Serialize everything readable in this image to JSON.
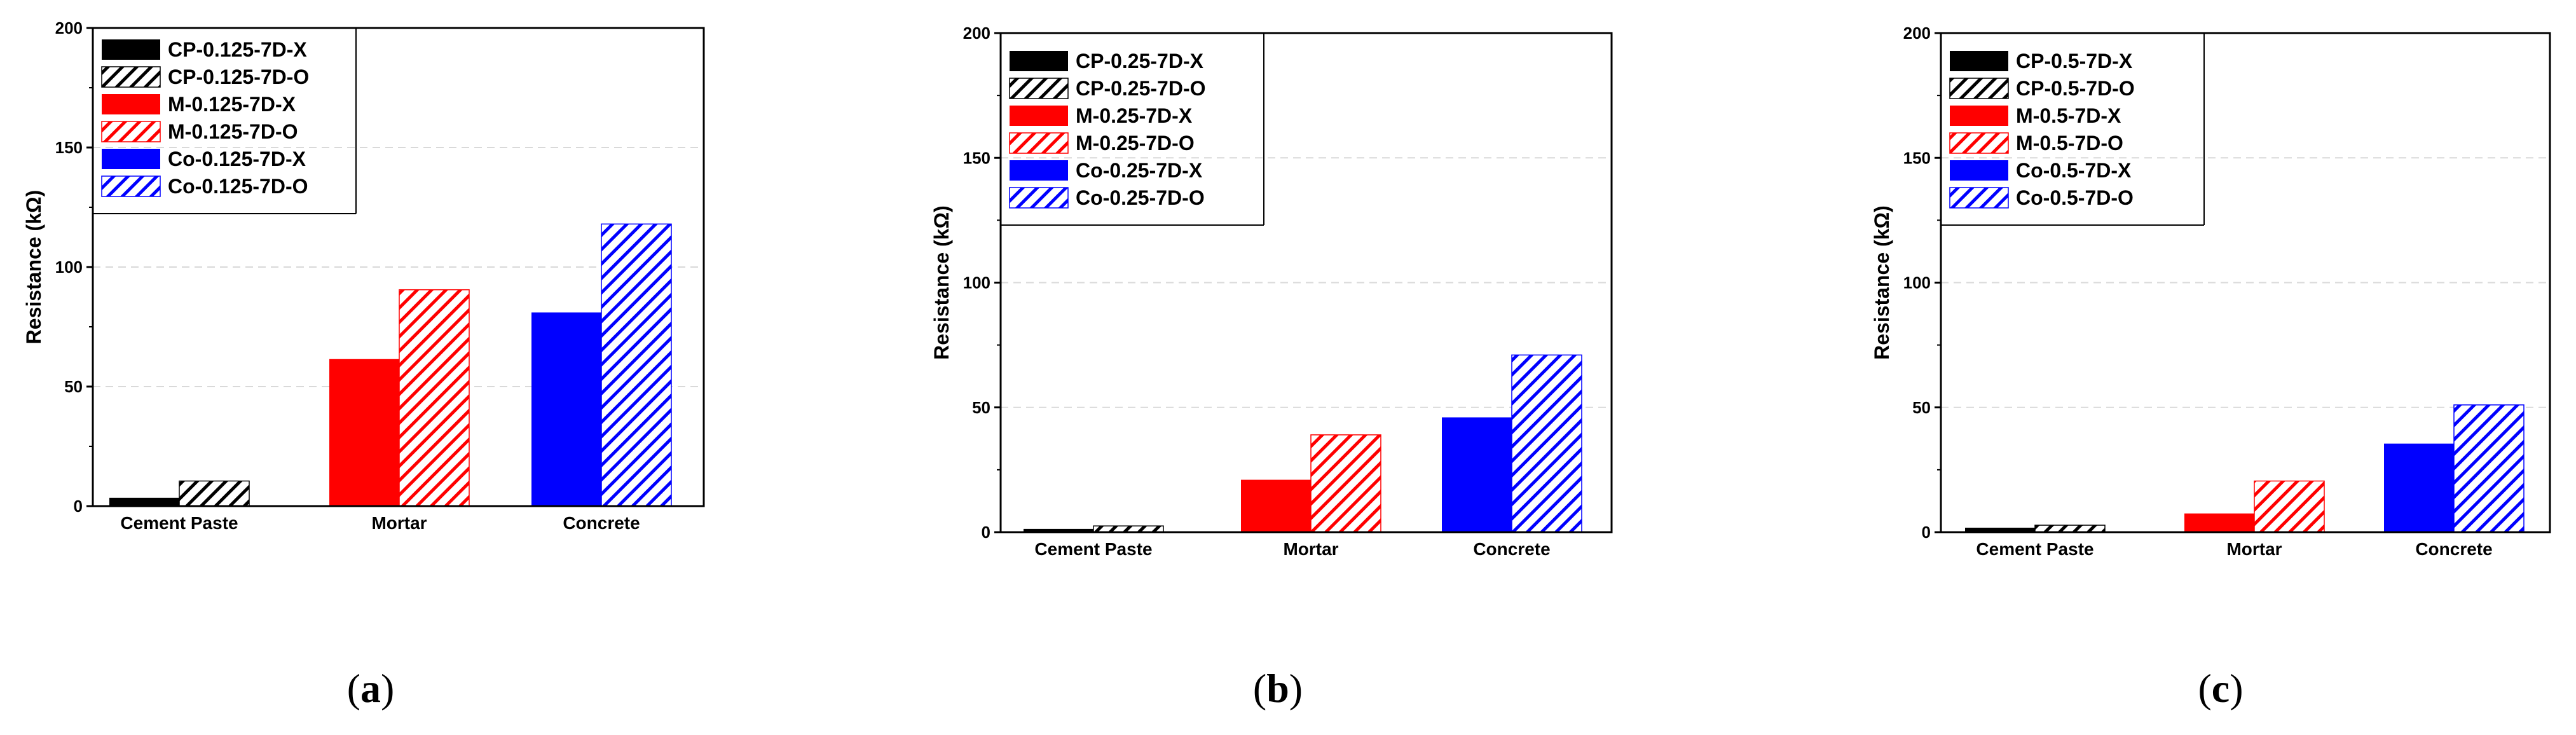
{
  "colors": {
    "black": "#000000",
    "red": "#ff0000",
    "blue": "#0000ff",
    "grid": "#d9d9d9"
  },
  "chart_data": [
    {
      "type": "bar",
      "panel_label": "a",
      "ylabel": "Resistance (kΩ)",
      "ylim": [
        0,
        200
      ],
      "yticks": [
        0,
        50,
        100,
        150,
        200
      ],
      "categories": [
        "Cement Paste",
        "Mortar",
        "Concrete"
      ],
      "grid": "horizontal dashed",
      "legend_position": "top-left",
      "series": [
        {
          "name": "CP-0.125-7D-X",
          "color": "#000000",
          "hatch": false,
          "values": [
            3.5,
            null,
            null
          ]
        },
        {
          "name": "CP-0.125-7D-O",
          "color": "#000000",
          "hatch": true,
          "values": [
            10.5,
            null,
            null
          ]
        },
        {
          "name": "M-0.125-7D-X",
          "color": "#ff0000",
          "hatch": false,
          "values": [
            null,
            61.5,
            null
          ]
        },
        {
          "name": "M-0.125-7D-O",
          "color": "#ff0000",
          "hatch": true,
          "values": [
            null,
            90.5,
            null
          ]
        },
        {
          "name": "Co-0.125-7D-X",
          "color": "#0000ff",
          "hatch": false,
          "values": [
            null,
            null,
            81
          ]
        },
        {
          "name": "Co-0.125-7D-O",
          "color": "#0000ff",
          "hatch": true,
          "values": [
            null,
            null,
            118
          ]
        }
      ]
    },
    {
      "type": "bar",
      "panel_label": "b",
      "ylabel": "Resistance (kΩ)",
      "ylim": [
        0,
        200
      ],
      "yticks": [
        0,
        50,
        100,
        150,
        200
      ],
      "categories": [
        "Cement Paste",
        "Mortar",
        "Concrete"
      ],
      "grid": "horizontal dashed",
      "legend_position": "top-left",
      "series": [
        {
          "name": "CP-0.25-7D-X",
          "color": "#000000",
          "hatch": false,
          "values": [
            1.3,
            null,
            null
          ]
        },
        {
          "name": "CP-0.25-7D-O",
          "color": "#000000",
          "hatch": true,
          "values": [
            2.5,
            null,
            null
          ]
        },
        {
          "name": "M-0.25-7D-X",
          "color": "#ff0000",
          "hatch": false,
          "values": [
            null,
            21,
            null
          ]
        },
        {
          "name": "M-0.25-7D-O",
          "color": "#ff0000",
          "hatch": true,
          "values": [
            null,
            39,
            null
          ]
        },
        {
          "name": "Co-0.25-7D-X",
          "color": "#0000ff",
          "hatch": false,
          "values": [
            null,
            null,
            46
          ]
        },
        {
          "name": "Co-0.25-7D-O",
          "color": "#0000ff",
          "hatch": true,
          "values": [
            null,
            null,
            71
          ]
        }
      ]
    },
    {
      "type": "bar",
      "panel_label": "c",
      "ylabel": "Resistance (kΩ)",
      "ylim": [
        0,
        200
      ],
      "yticks": [
        0,
        50,
        100,
        150,
        200
      ],
      "categories": [
        "Cement Paste",
        "Mortar",
        "Concrete"
      ],
      "grid": "horizontal dashed",
      "legend_position": "top-left",
      "series": [
        {
          "name": "CP-0.5-7D-X",
          "color": "#000000",
          "hatch": false,
          "values": [
            1.8,
            null,
            null
          ]
        },
        {
          "name": "CP-0.5-7D-O",
          "color": "#000000",
          "hatch": true,
          "values": [
            2.8,
            null,
            null
          ]
        },
        {
          "name": "M-0.5-7D-X",
          "color": "#ff0000",
          "hatch": false,
          "values": [
            null,
            7.5,
            null
          ]
        },
        {
          "name": "M-0.5-7D-O",
          "color": "#ff0000",
          "hatch": true,
          "values": [
            null,
            20.5,
            null
          ]
        },
        {
          "name": "Co-0.5-7D-X",
          "color": "#0000ff",
          "hatch": false,
          "values": [
            null,
            null,
            35.5
          ]
        },
        {
          "name": "Co-0.5-7D-O",
          "color": "#0000ff",
          "hatch": true,
          "values": [
            null,
            null,
            51
          ]
        }
      ]
    }
  ]
}
